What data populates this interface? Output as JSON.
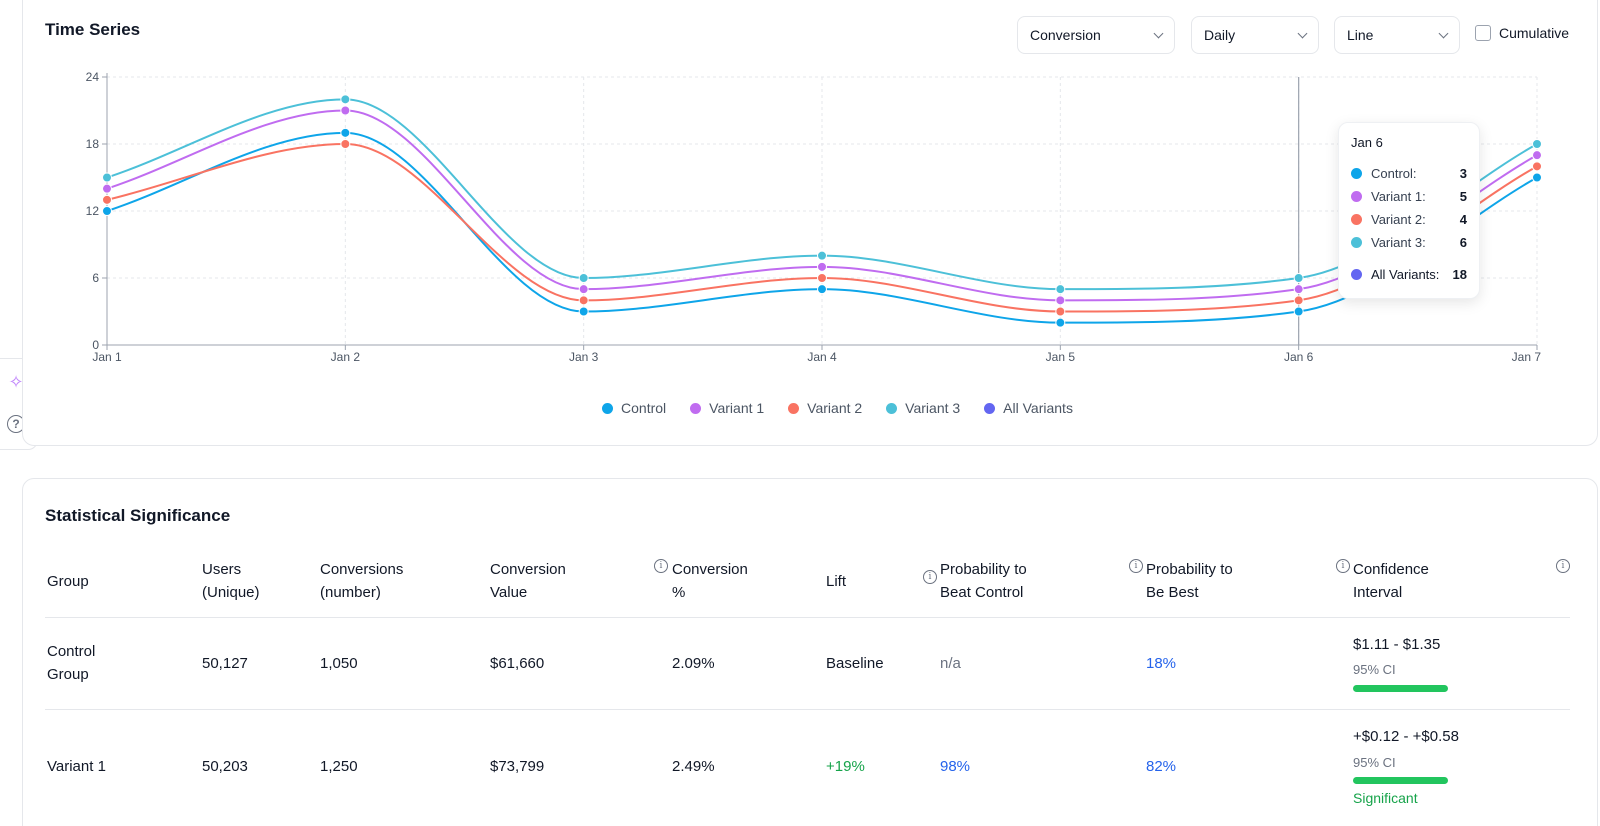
{
  "time_series": {
    "title": "Time Series",
    "metric_select": "Conversion",
    "period_select": "Daily",
    "chart_type_select": "Line",
    "cumulative_label": "Cumulative",
    "tooltip": {
      "date": "Jan 6",
      "rows": [
        {
          "label": "Control:",
          "value": "3",
          "color": "#0ea5e9"
        },
        {
          "label": "Variant 1:",
          "value": "5",
          "color": "#c06cf0"
        },
        {
          "label": "Variant 2:",
          "value": "4",
          "color": "#f97362"
        },
        {
          "label": "Variant 3:",
          "value": "6",
          "color": "#4cc0d8"
        }
      ],
      "total": {
        "label": "All Variants:",
        "value": "18",
        "color": "#6366f1"
      }
    },
    "legend": [
      {
        "label": "Control",
        "color": "#0ea5e9"
      },
      {
        "label": "Variant 1",
        "color": "#c06cf0"
      },
      {
        "label": "Variant 2",
        "color": "#f97362"
      },
      {
        "label": "Variant 3",
        "color": "#4cc0d8"
      },
      {
        "label": "All Variants",
        "color": "#6366f1"
      }
    ]
  },
  "chart_data": {
    "type": "line",
    "x": [
      "Jan 1",
      "Jan 2",
      "Jan 3",
      "Jan 4",
      "Jan 5",
      "Jan 6",
      "Jan 7"
    ],
    "ylim": [
      0,
      24
    ],
    "yticks": [
      0,
      6,
      12,
      18,
      24
    ],
    "grid": true,
    "series": [
      {
        "name": "Control",
        "color": "#0ea5e9",
        "values": [
          12,
          19,
          3,
          5,
          2,
          3,
          15
        ]
      },
      {
        "name": "Variant 1",
        "color": "#c06cf0",
        "values": [
          14,
          21,
          5,
          7,
          4,
          5,
          17
        ]
      },
      {
        "name": "Variant 2",
        "color": "#f97362",
        "values": [
          13,
          18,
          4,
          6,
          3,
          4,
          16
        ]
      },
      {
        "name": "Variant 3",
        "color": "#4cc0d8",
        "values": [
          15,
          22,
          6,
          8,
          5,
          6,
          18
        ]
      }
    ],
    "hover_index": 5
  },
  "stats": {
    "title": "Statistical Significance",
    "headers": {
      "group": "Group",
      "users_1": "Users",
      "users_2": "(Unique)",
      "conv_1": "Conversions",
      "conv_2": "(number)",
      "value_1": "Conversion",
      "value_2": "Value",
      "pct_1": "Conversion",
      "pct_2": "%",
      "lift": "Lift",
      "beat_1": "Probability to",
      "beat_2": "Beat Control",
      "best_1": "Probability to",
      "best_2": "Be Best",
      "ci_1": "Confidence",
      "ci_2": "Interval"
    },
    "rows": [
      {
        "group_1": "Control",
        "group_2": "Group",
        "users": "50,127",
        "conversions": "1,050",
        "value": "$61,660",
        "pct": "2.09%",
        "lift": "Baseline",
        "beat": "n/a",
        "best": "18%",
        "ci": "$1.11 - $1.35",
        "ci_level": "95% CI"
      },
      {
        "group": "Variant 1",
        "users": "50,203",
        "conversions": "1,250",
        "value": "$73,799",
        "pct": "2.49%",
        "lift": "+19%",
        "beat": "98%",
        "best": "82%",
        "ci": "+$0.12 - +$0.58",
        "ci_level": "95% CI",
        "status": "Significant"
      }
    ]
  }
}
